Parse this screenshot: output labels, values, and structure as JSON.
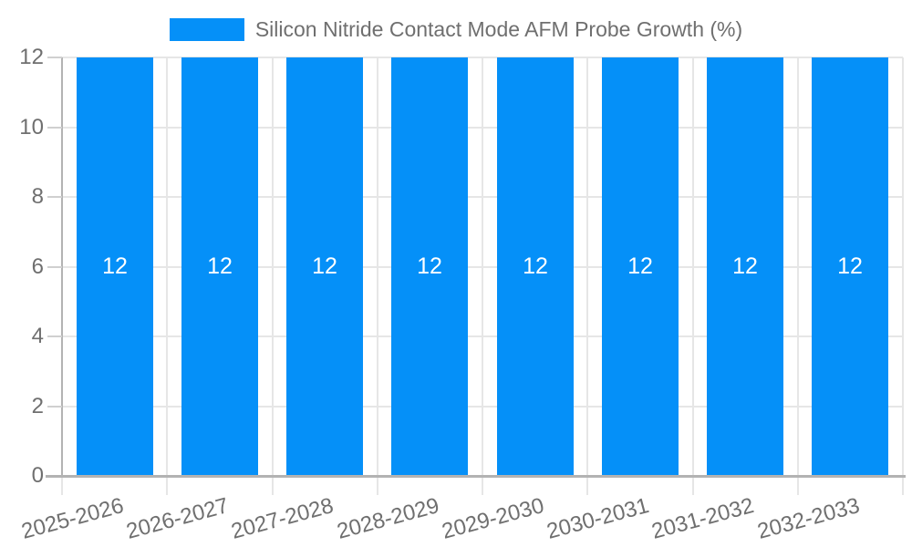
{
  "legend": {
    "label": "Silicon Nitride Contact Mode AFM Probe Growth (%)"
  },
  "chart_data": {
    "type": "bar",
    "title": "Silicon Nitride Contact Mode AFM Probe Growth (%)",
    "categories": [
      "2025-2026",
      "2026-2027",
      "2027-2028",
      "2028-2029",
      "2029-2030",
      "2030-2031",
      "2031-2032",
      "2032-2033"
    ],
    "series": [
      {
        "name": "Silicon Nitride Contact Mode AFM Probe Growth (%)",
        "values": [
          12,
          12,
          12,
          12,
          12,
          12,
          12,
          12
        ]
      }
    ],
    "data_labels": [
      12,
      12,
      12,
      12,
      12,
      12,
      12,
      12
    ],
    "xlabel": "",
    "ylabel": "",
    "ylim": [
      0,
      12
    ],
    "ytick_step": 2,
    "yticks": [
      0,
      2,
      4,
      6,
      8,
      10,
      12
    ],
    "grid": true,
    "legend_position": "top",
    "x_label_rotation_deg": -15,
    "colors": {
      "bar": "#0590f8",
      "text": "#6f6f6f",
      "grid_line": "#e6e6e6",
      "axis_line": "#b3b3b3",
      "tick_line": "#d0d0d0",
      "bar_label": "#ffffff"
    }
  }
}
